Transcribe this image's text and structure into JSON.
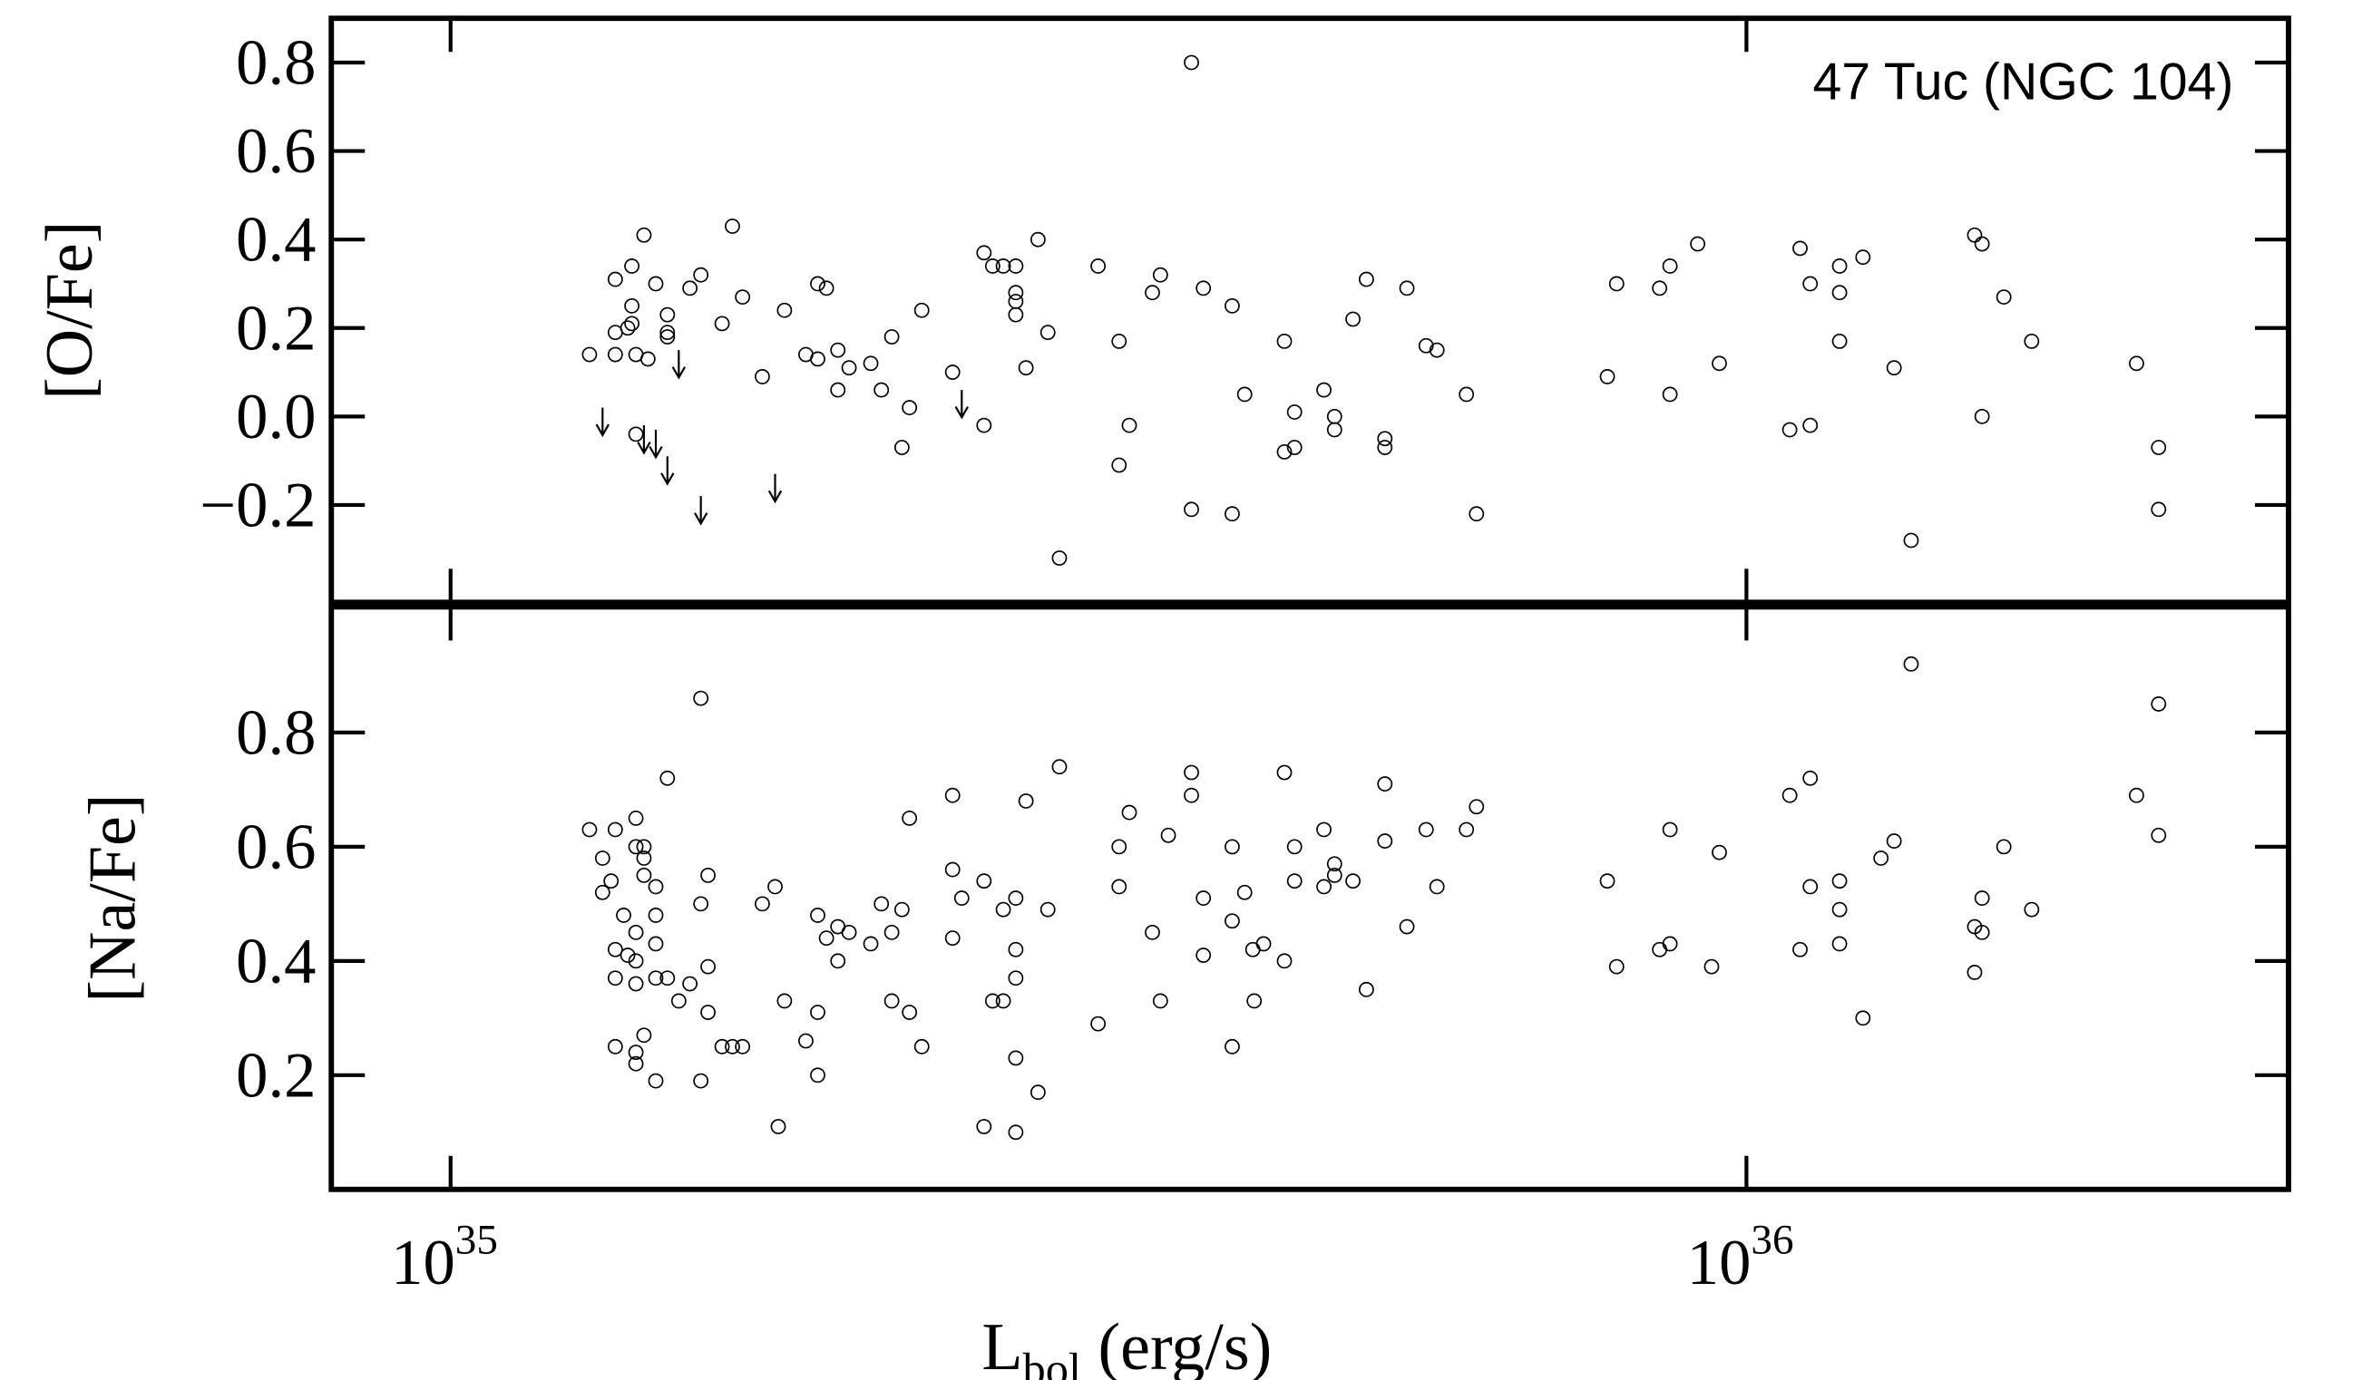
{
  "chart_data": [
    {
      "type": "scatter",
      "ylabel": "[O/Fe]",
      "annotation": "47 Tuc (NGC 104)",
      "log_x": true,
      "xlim": [
        8.09e+34,
        2.62e+36
      ],
      "xticks": [
        1e+35,
        1e+36
      ],
      "ylim": [
        -0.42,
        0.9
      ],
      "yticks": [
        {
          "value": -0.2,
          "label": "−0.2"
        },
        {
          "value": 0,
          "label": "0.0"
        },
        0.2,
        0.4,
        0.6,
        0.8
      ],
      "x": [
        1.28e+35,
        1.34e+35,
        1.34e+35,
        1.34e+35,
        1.37e+35,
        1.38e+35,
        1.38e+35,
        1.39e+35,
        1.38e+35,
        1.41e+35,
        1.42e+35,
        1.44e+35,
        1.47e+35,
        1.47e+35,
        1.47e+35,
        1.39e+35,
        1.53e+35,
        1.56e+35,
        1.62e+35,
        1.65e+35,
        1.68e+35,
        1.74e+35,
        1.81e+35,
        1.88e+35,
        1.92e+35,
        1.92e+35,
        1.95e+35,
        1.99e+35,
        1.99e+35,
        2.03e+35,
        2.11e+35,
        2.15e+35,
        2.19e+35,
        2.23e+35,
        2.26e+35,
        2.31e+35,
        2.44e+35,
        2.58e+35,
        2.58e+35,
        2.62e+35,
        2.67e+35,
        2.73e+35,
        2.73e+35,
        2.73e+35,
        2.73e+35,
        2.78e+35,
        2.84e+35,
        2.89e+35,
        2.95e+35,
        3.16e+35,
        3.28e+35,
        3.28e+35,
        3.34e+35,
        3.48e+35,
        3.53e+35,
        3.73e+35,
        3.81e+35,
        4.01e+35,
        4.01e+35,
        4.1e+35,
        4.4e+35,
        4.4e+35,
        4.48e+35,
        4.48e+35,
        4.72e+35,
        4.81e+35,
        4.81e+35,
        4.97e+35,
        5.09e+35,
        5.26e+35,
        5.26e+35,
        5.47e+35,
        5.66e+35,
        5.77e+35,
        6.08e+35,
        6.19e+35,
        3.73e+35,
        7.81e+35,
        7.94e+35,
        8.57e+35,
        8.73e+35,
        8.73e+35,
        9.17e+35,
        9.53e+35,
        1.08e+36,
        1.1e+36,
        1.12e+36,
        1.12e+36,
        1.18e+36,
        1.18e+36,
        1.18e+36,
        1.23e+36,
        1.3e+36,
        1.34e+36,
        1.5e+36,
        1.52e+36,
        1.52e+36,
        1.58e+36,
        1.66e+36,
        2e+36,
        2.08e+36,
        2.08e+36
      ],
      "values": [
        0.14,
        0.31,
        0.19,
        0.14,
        0.2,
        0.34,
        0.25,
        0.14,
        0.21,
        0.41,
        0.13,
        0.3,
        0.18,
        0.23,
        0.19,
        -0.04,
        0.29,
        0.32,
        0.21,
        0.43,
        0.27,
        0.09,
        0.24,
        0.14,
        0.3,
        0.13,
        0.29,
        0.15,
        0.06,
        0.11,
        0.12,
        0.06,
        0.18,
        -0.07,
        0.02,
        0.24,
        0.1,
        0.37,
        -0.02,
        0.34,
        0.34,
        0.34,
        0.28,
        0.26,
        0.23,
        0.11,
        0.4,
        0.19,
        -0.32,
        0.34,
        0.17,
        -0.11,
        -0.02,
        0.28,
        0.32,
        -0.21,
        0.29,
        0.25,
        -0.22,
        0.05,
        0.17,
        -0.08,
        -0.07,
        0.01,
        0.06,
        0.0,
        -0.03,
        0.22,
        0.31,
        -0.05,
        -0.07,
        0.29,
        0.16,
        0.15,
        0.05,
        -0.22,
        0.8,
        0.09,
        0.3,
        0.29,
        0.34,
        0.05,
        0.39,
        0.12,
        -0.03,
        0.38,
        0.3,
        -0.02,
        0.34,
        0.28,
        0.17,
        0.36,
        0.11,
        -0.28,
        0.41,
        0.39,
        0.0,
        0.27,
        0.17,
        0.12,
        -0.07,
        -0.21
      ],
      "upper_limits": {
        "x": [
          1.31e+35,
          1.41e+35,
          1.44e+35,
          1.47e+35,
          1.5e+35,
          1.56e+35,
          1.78e+35,
          2.48e+35
        ],
        "values": [
          0.02,
          -0.02,
          -0.03,
          -0.09,
          0.15,
          -0.18,
          -0.13,
          0.06
        ]
      }
    },
    {
      "type": "scatter",
      "ylabel": "[Na/Fe]",
      "log_x": true,
      "xlabel": {
        "text": "L",
        "sub": "bol",
        "rest": " (erg/s)"
      },
      "xlim": [
        8.09e+34,
        2.62e+36
      ],
      "xticks": [
        {
          "value": 1e+35,
          "label": "10",
          "exponent": "35"
        },
        {
          "value": 1e+36,
          "label": "10",
          "exponent": "36"
        }
      ],
      "ylim": [
        0,
        1.02
      ],
      "yticks": [
        0.2,
        0.4,
        0.6,
        0.8
      ],
      "x": [
        1.28e+35,
        1.31e+35,
        1.31e+35,
        1.34e+35,
        1.33e+35,
        1.34e+35,
        1.34e+35,
        1.34e+35,
        1.36e+35,
        1.37e+35,
        1.39e+35,
        1.39e+35,
        1.39e+35,
        1.39e+35,
        1.39e+35,
        1.39e+35,
        1.39e+35,
        1.41e+35,
        1.41e+35,
        1.41e+35,
        1.41e+35,
        1.44e+35,
        1.44e+35,
        1.44e+35,
        1.44e+35,
        1.44e+35,
        1.47e+35,
        1.47e+35,
        1.5e+35,
        1.53e+35,
        1.56e+35,
        1.56e+35,
        1.56e+35,
        1.58e+35,
        1.58e+35,
        1.58e+35,
        1.62e+35,
        1.65e+35,
        1.68e+35,
        1.74e+35,
        1.78e+35,
        1.79e+35,
        1.81e+35,
        1.88e+35,
        1.92e+35,
        1.92e+35,
        1.92e+35,
        1.95e+35,
        1.99e+35,
        1.99e+35,
        2.03e+35,
        2.11e+35,
        2.15e+35,
        2.19e+35,
        2.19e+35,
        2.23e+35,
        2.26e+35,
        2.26e+35,
        2.31e+35,
        2.44e+35,
        2.44e+35,
        2.44e+35,
        2.48e+35,
        2.58e+35,
        2.58e+35,
        2.62e+35,
        2.67e+35,
        2.67e+35,
        2.73e+35,
        2.73e+35,
        2.73e+35,
        2.73e+35,
        2.73e+35,
        2.78e+35,
        2.84e+35,
        2.89e+35,
        2.95e+35,
        3.16e+35,
        3.28e+35,
        3.28e+35,
        3.34e+35,
        3.48e+35,
        3.53e+35,
        3.58e+35,
        3.73e+35,
        3.73e+35,
        3.81e+35,
        3.81e+35,
        4.01e+35,
        4.01e+35,
        4.01e+35,
        4.1e+35,
        4.16e+35,
        4.24e+35,
        4.17e+35,
        4.4e+35,
        4.4e+35,
        4.48e+35,
        4.48e+35,
        4.72e+35,
        4.72e+35,
        4.81e+35,
        4.81e+35,
        4.97e+35,
        5.09e+35,
        5.26e+35,
        5.26e+35,
        5.47e+35,
        5.66e+35,
        5.77e+35,
        6.08e+35,
        6.19e+35,
        7.81e+35,
        7.94e+35,
        8.57e+35,
        8.73e+35,
        8.73e+35,
        9.4e+35,
        9.53e+35,
        1.08e+36,
        1.1e+36,
        1.12e+36,
        1.12e+36,
        1.18e+36,
        1.18e+36,
        1.18e+36,
        1.23e+36,
        1.27e+36,
        1.3e+36,
        1.34e+36,
        1.5e+36,
        1.5e+36,
        1.52e+36,
        1.52e+36,
        1.58e+36,
        1.66e+36,
        2e+36,
        2.08e+36,
        2.08e+36
      ],
      "values": [
        0.63,
        0.58,
        0.52,
        0.63,
        0.54,
        0.42,
        0.37,
        0.25,
        0.48,
        0.41,
        0.65,
        0.6,
        0.45,
        0.4,
        0.36,
        0.24,
        0.22,
        0.6,
        0.58,
        0.55,
        0.27,
        0.53,
        0.48,
        0.43,
        0.37,
        0.19,
        0.72,
        0.37,
        0.33,
        0.36,
        0.5,
        0.86,
        0.19,
        0.55,
        0.39,
        0.31,
        0.25,
        0.25,
        0.25,
        0.5,
        0.53,
        0.11,
        0.33,
        0.26,
        0.48,
        0.31,
        0.2,
        0.44,
        0.46,
        0.4,
        0.45,
        0.43,
        0.5,
        0.45,
        0.33,
        0.49,
        0.65,
        0.31,
        0.25,
        0.69,
        0.56,
        0.44,
        0.51,
        0.54,
        0.11,
        0.33,
        0.49,
        0.33,
        0.51,
        0.42,
        0.37,
        0.23,
        0.1,
        0.68,
        0.17,
        0.49,
        0.74,
        0.29,
        0.6,
        0.53,
        0.66,
        0.45,
        0.33,
        0.62,
        0.73,
        0.69,
        0.51,
        0.41,
        0.6,
        0.47,
        0.25,
        0.52,
        0.42,
        0.43,
        0.33,
        0.73,
        0.4,
        0.6,
        0.54,
        0.63,
        0.53,
        0.57,
        0.55,
        0.54,
        0.35,
        0.71,
        0.61,
        0.46,
        0.63,
        0.53,
        0.63,
        0.67,
        0.54,
        0.39,
        0.42,
        0.43,
        0.63,
        0.39,
        0.59,
        0.69,
        0.42,
        0.72,
        0.53,
        0.54,
        0.49,
        0.43,
        0.3,
        0.58,
        0.61,
        0.92,
        0.46,
        0.38,
        0.51,
        0.45,
        0.6,
        0.49,
        0.69,
        0.62,
        0.85
      ]
    }
  ]
}
